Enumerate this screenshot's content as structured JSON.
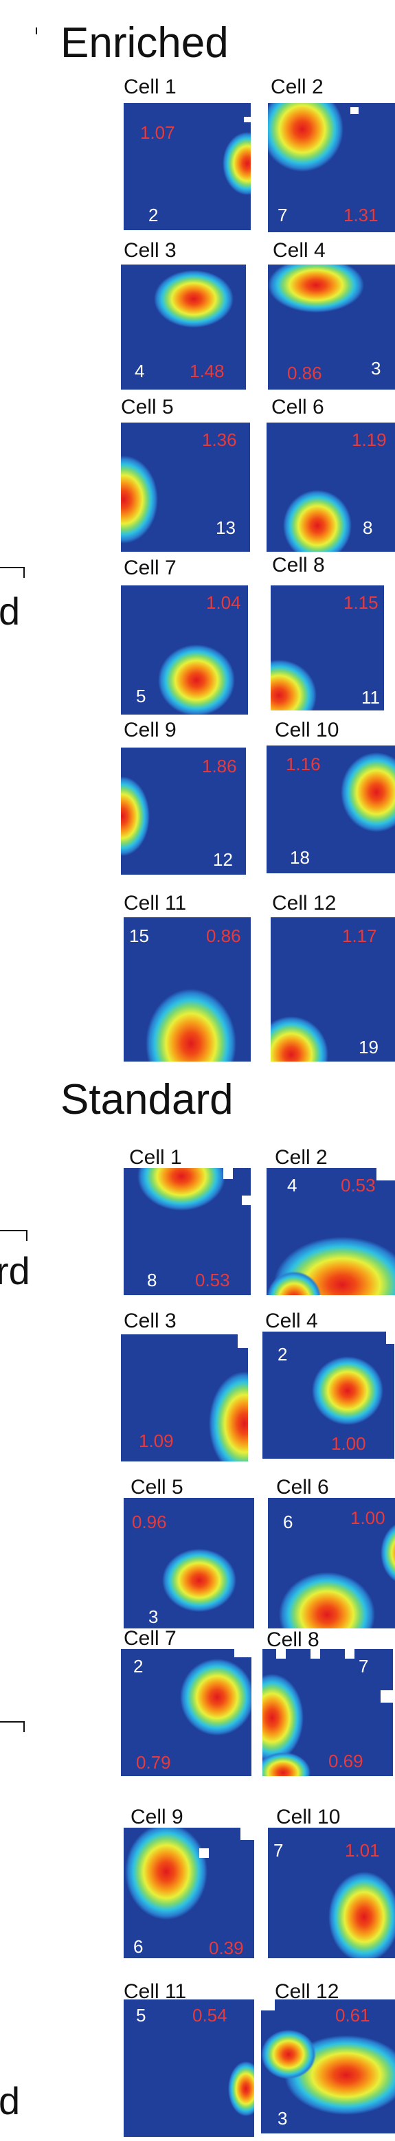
{
  "left_fragments": [
    "d",
    "rd",
    "d"
  ],
  "sections": [
    {
      "title": "Enriched",
      "cells": [
        {
          "label": "Cell 1",
          "count": "2",
          "score": "1.07"
        },
        {
          "label": "Cell 2",
          "count": "7",
          "score": "1.31"
        },
        {
          "label": "Cell 3",
          "count": "4",
          "score": "1.48"
        },
        {
          "label": "Cell 4",
          "count": "3",
          "score": "0.86"
        },
        {
          "label": "Cell 5",
          "count": "13",
          "score": "1.36"
        },
        {
          "label": "Cell 6",
          "count": "8",
          "score": "1.19"
        },
        {
          "label": "Cell 7",
          "count": "5",
          "score": "1.04"
        },
        {
          "label": "Cell 8",
          "count": "11",
          "score": "1.15"
        },
        {
          "label": "Cell 9",
          "count": "12",
          "score": "1.86"
        },
        {
          "label": "Cell 10",
          "count": "18",
          "score": "1.16"
        },
        {
          "label": "Cell 11",
          "count": "15",
          "score": "0.86"
        },
        {
          "label": "Cell 12",
          "count": "19",
          "score": "1.17"
        }
      ]
    },
    {
      "title": "Standard",
      "cells": [
        {
          "label": "Cell 1",
          "count": "8",
          "score": "0.53"
        },
        {
          "label": "Cell 2",
          "count": "4",
          "score": "0.53"
        },
        {
          "label": "Cell 3",
          "count": "",
          "score": "1.09"
        },
        {
          "label": "Cell 4",
          "count": "2",
          "score": "1.00"
        },
        {
          "label": "Cell 5",
          "count": "3",
          "score": "0.96"
        },
        {
          "label": "Cell 6",
          "count": "6",
          "score": "1.00"
        },
        {
          "label": "Cell 7",
          "count": "2",
          "score": "0.79"
        },
        {
          "label": "Cell 8",
          "count": "7",
          "score": "0.69"
        },
        {
          "label": "Cell 9",
          "count": "6",
          "score": "0.39"
        },
        {
          "label": "Cell 10",
          "count": "7",
          "score": "1.01"
        },
        {
          "label": "Cell 11",
          "count": "5",
          "score": "0.54"
        },
        {
          "label": "Cell 12",
          "count": "3",
          "score": "0.61"
        }
      ]
    }
  ],
  "colors": {
    "background_field": "#1f3f9a",
    "peak": "#e0191e",
    "count_text": "#ffffff",
    "score_text": "#e83a3a"
  }
}
